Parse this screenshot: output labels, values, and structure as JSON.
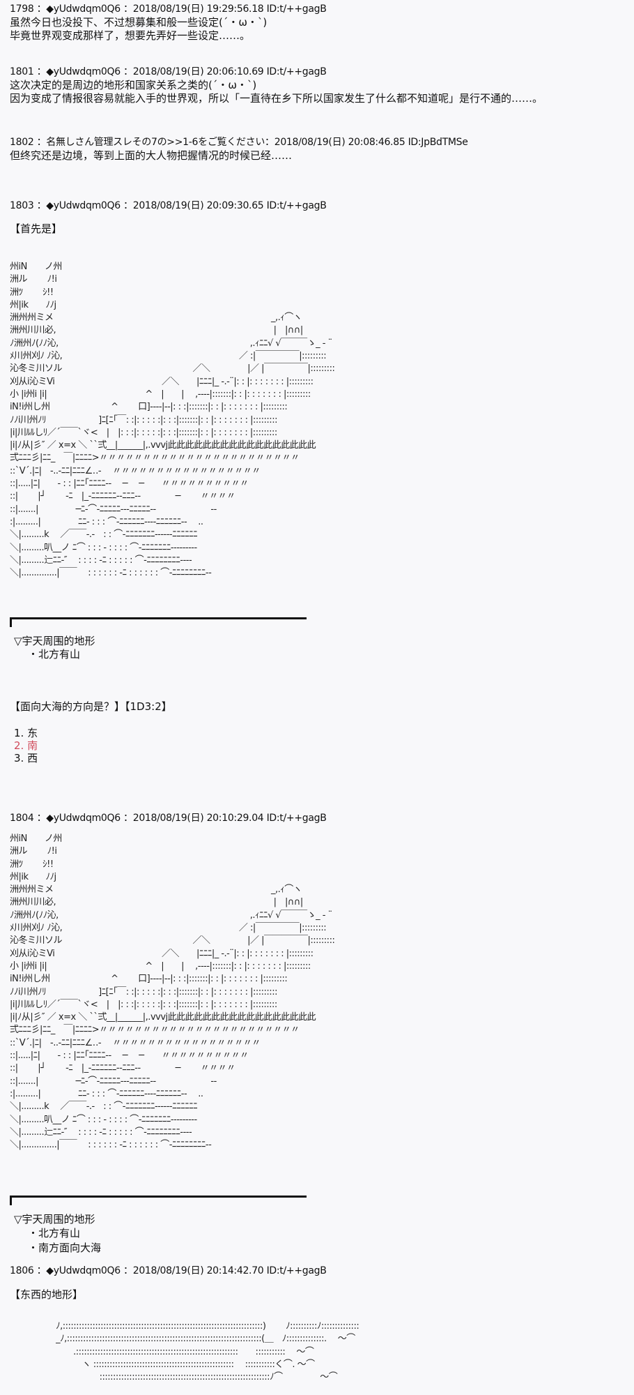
{
  "posts": [
    {
      "header": "1798 ：◆yUdwdqm0Q6 ：2018/08/19(日) 19:29:56.18 ID:t/++gagB",
      "lines": [
        "虽然今日也没投下、不过想募集和般一些设定(´・ω・`)",
        "毕竟世界观变成那样了，想要先弄好一些设定……。"
      ]
    },
    {
      "header": "1801 ：◆yUdwdqm0Q6 ：2018/08/19(日) 20:06:10.69 ID:t/++gagB",
      "lines": [
        "这次决定的是周边的地形和国家关系之类的(´・ω・`)",
        "因为变成了情报很容易就能入手的世界观，所以「一直待在乡下所以国家发生了什么都不知道呢」是行不通的……。"
      ]
    },
    {
      "header": "1802 ：名無しさん管理スレその7の>>1-6をご覧ください：2018/08/19(日) 20:08:46.85 ID:JpBdTMSe",
      "lines": [
        "但终究还是边境，等到上面的大人物把握情况的时候已经……"
      ]
    },
    {
      "header": "1803 ：◆yUdwdqm0Q6 ：2018/08/19(日) 20:09:30.65 ID:t/++gagB",
      "lines": [
        "【首先是】"
      ]
    },
    {
      "header": "1804 ：◆yUdwdqm0Q6 ：2018/08/19(日) 20:10:29.04 ID:t/++gagB"
    },
    {
      "header": "1806 ：◆yUdwdqm0Q6 ：2018/08/19(日) 20:14:42.70 ID:t/++gagB",
      "lines": [
        "【东西的地形】"
      ]
    }
  ],
  "terrain1": {
    "title": "▽宇天周围的地形",
    "items": [
      "・北方有山"
    ]
  },
  "question": {
    "text": "【面向大海的方向是？】【1D3:2】",
    "options": [
      "1. 东",
      "2. 南",
      "3. 西"
    ],
    "selected_index": 1,
    "selected_color": "#d04a5a"
  },
  "terrain2": {
    "title": "▽宇天周围的地形",
    "items": [
      "・北方有山",
      "・南方面向大海"
    ]
  },
  "art_city": "州iN　　ノ州\n洲ル　　 ﾉ!i\n洲ﾂ　　 ｼ!!\n州|ik　　ﾉﾉj\n洲州州ミメ　　　　　　　　　　　　　　　　　　　　　　　　　_,.ｨ⌒ヽ\n洲州川川必,　　　　　　　　　　　　　　　　　　　　　　　　　|　|∩∩|\nﾉ洲州ﾉ(ﾉﾉ沁,　　　　　　　　　　　　　　　　　　　　　　,.ｨﾆﾆ√ √￣￣￣ゝ_ - ¨\nﾒ川州刈ﾉ ﾉ沁,　　　　　　　　　　　　　　　　　　　　 ／ :|￣￣￣￣￣|:::::::::\n沁冬ミ川ソル　　　　　　　　　　　　　　　／＼　　　　 |／ |￣￣￣￣￣|:::::::::\n刈从i沁ミVi　　　　　　　　　　　　 ／＼　　|ﾆﾆﾆ|_ -.-¨|: : |: : : : : : : |:::::::::\n小 |i州i |i|　　　　　　　　　　　 ^　|　　|　 ,-‐‐‐|:::::::|: : |: : : : : : : |:::::::::\niN!i州し州　　　　　　　^　　 口]‐‐‐‐|‐‐|: : :|:::::::|: : |: : : : : : : |:::::::::\nﾉﾉi川州ﾉﾘ　　　　　　]ﾆ[ﾆ｢￣: :|: : : : :|: : :|:::::::|: : |: : : : : : : |:::::::::\n|i|川ﾙﾙしﾘ／´￣￣`ヾ<　|　|: : :|: : : : :|: : :|:::::::|: : |: : : : : : : |:::::::::\n|i|ﾉ从|彡″ ／ x=x ＼ ``弍__|______|,.vvvj此此此此此此此此此此此此此此此此此\n弍ﾆﾆﾆ彡|ﾆﾆ_　￣|ﾆﾆﾆﾆ>〃〃〃〃〃〃〃〃〃〃〃〃〃〃〃〃〃〃〃〃〃〃〃\n::`V´.|ﾆ|　-..-ﾆﾆ|ﾆﾆﾆ∠‥‐　 〃〃〃〃〃〃〃〃〃〃〃〃〃〃〃〃〃\n::|.....|ﾆ|　　- : : |ﾆﾆ｢ﾆﾆﾆﾆ‐-　 ─　 ─　　〃〃〃〃〃〃〃〃〃〃\n::|　　 |┘　　 -ﾆ　|_-ﾆﾆﾆﾆﾆﾆ‐‐ﾆﾆﾆ-‐　　　　─　　 〃〃〃〃\n::|.......|　　　　 ─ﾆ‐⌒-ﾆﾆﾆﾆﾆ‐‐‐ﾆﾆﾆﾆﾆ‐-　　　　　　 --\n:|.........|　　　　 ﾆﾆ- : : : ⌒‐ﾆﾆﾆﾆﾆﾆ‐‐‐‐ﾆﾆﾆﾆﾆﾆ‐-　 ..\n＼|.........k　 ／￣￣-.-　: : ⌒‐ﾆﾆﾆﾆﾆﾆﾆ‐‐‐‐‐‐ﾆﾆﾆﾆﾆﾆ\n＼|.........叭__ノ ﾆ⌒ : : : - : : : : ⌒‐ﾆﾆﾆﾆﾆﾆﾆ‐‐‐‐‐‐‐‐‐\n＼|.........辷ﾆﾆ-″　 : : : : -ﾆ : : : : : ⌒‐ﾆﾆﾆﾆﾆﾆﾆﾆ‐‐‐‐\n＼|..............|￣￣　 : : : : : : -ﾆ : : : : : : ⌒‐ﾆﾆﾆﾆﾆﾆﾆﾆ‐‐",
  "art_terrain": "　　　　　 ﾉ,::::::::::::::::::::::::::::::::::::::::::::::::::::::::::::::::::::::::::)　　 ﾉ::::::::::ﾉ::::::::::::::\n　　　　　 _ﾉ,::::::::::::::::::::::::::::::::::::::::::::::::::::::::::::::::::::::::(＿　ﾉ::::::::::::::.　 ～⌒\n　　　　　　　 .::::::::::::::::::::::::::::::::::::::::::::::::::::::::::::　　:::::::::::　 ～⌒\n　　　　　　　　 ヽ ::::::::::::::::::::::::::::::::::::::::::::::::::::　 :::::::::::く⌒. ～⌒\n　　　　　　　　　　 :::::::::::::::::::::::::::::::::::::::::::::::::::::::::::::::ﾉ⌒　　　　 ～⌒"
}
